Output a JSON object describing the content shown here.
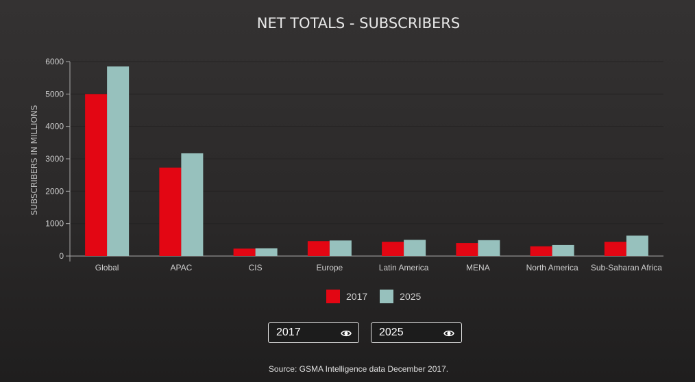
{
  "chart_data": {
    "type": "bar",
    "title": "NET TOTALS - SUBSCRIBERS",
    "xlabel": "",
    "ylabel": "SUBSCRIBERS IN MILLIONS",
    "ylim": [
      0,
      6000
    ],
    "yticks": [
      "0",
      "1000",
      "2000",
      "3000",
      "4000",
      "5000",
      "6000"
    ],
    "categories": [
      "Global",
      "APAC",
      "CIS",
      "Europe",
      "Latin America",
      "MENA",
      "North America",
      "Sub-Saharan Africa"
    ],
    "series": [
      {
        "name": "2017",
        "color": "#e30613",
        "values": [
          5000,
          2730,
          230,
          460,
          440,
          400,
          300,
          440
        ]
      },
      {
        "name": "2025",
        "color": "#97c1bd",
        "values": [
          5850,
          3170,
          240,
          480,
          500,
          490,
          340,
          630
        ]
      }
    ],
    "grid": true,
    "legend": "bottom-center"
  },
  "toggles": [
    {
      "label": "2017",
      "icon": "eye-icon"
    },
    {
      "label": "2025",
      "icon": "eye-icon"
    }
  ],
  "source": "Source: GSMA Intelligence data December 2017."
}
